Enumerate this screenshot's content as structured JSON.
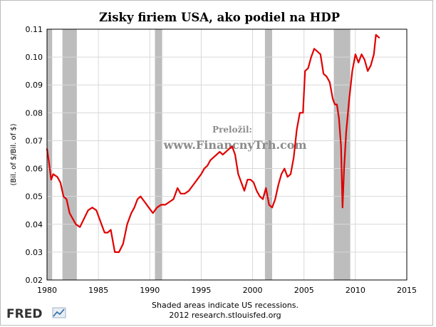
{
  "chart_data": {
    "type": "line",
    "title": "Zisky firiem USA, ako podiel na HDP",
    "ylabel": "(Bil. of $/Bil. of $)",
    "xlabel": "",
    "xlim": [
      1980,
      2015
    ],
    "ylim": [
      0.02,
      0.11
    ],
    "x_ticks": [
      "1980",
      "1985",
      "1990",
      "1995",
      "2000",
      "2005",
      "2010",
      "2015"
    ],
    "y_ticks": [
      "0.02",
      "0.03",
      "0.04",
      "0.05",
      "0.06",
      "0.07",
      "0.08",
      "0.09",
      "0.10",
      "0.11"
    ],
    "grid": true,
    "line_color": "#e00000",
    "recession_color": "#bdbdbd",
    "recessions": [
      [
        1980.0,
        1980.5
      ],
      [
        1981.5,
        1982.9
      ],
      [
        1990.5,
        1991.2
      ],
      [
        2001.2,
        2001.9
      ],
      [
        2007.9,
        2009.5
      ]
    ],
    "x": [
      1980.0,
      1980.2,
      1980.4,
      1980.6,
      1981.0,
      1981.3,
      1981.6,
      1981.9,
      1982.2,
      1982.5,
      1982.8,
      1983.2,
      1983.6,
      1984.0,
      1984.4,
      1984.8,
      1985.2,
      1985.6,
      1985.9,
      1986.2,
      1986.6,
      1987.0,
      1987.4,
      1987.8,
      1988.2,
      1988.5,
      1988.8,
      1989.1,
      1989.5,
      1989.9,
      1990.3,
      1990.7,
      1991.1,
      1991.5,
      1991.9,
      1992.3,
      1992.7,
      1993.0,
      1993.4,
      1993.8,
      1994.2,
      1994.6,
      1995.0,
      1995.3,
      1995.6,
      1995.9,
      1996.2,
      1996.5,
      1996.8,
      1997.1,
      1997.4,
      1997.7,
      1998.0,
      1998.3,
      1998.6,
      1998.9,
      1999.2,
      1999.5,
      1999.8,
      2000.1,
      2000.4,
      2000.7,
      2001.0,
      2001.3,
      2001.6,
      2001.9,
      2002.2,
      2002.5,
      2002.8,
      2003.1,
      2003.4,
      2003.7,
      2004.0,
      2004.3,
      2004.6,
      2004.9,
      2005.1,
      2005.4,
      2005.7,
      2006.0,
      2006.3,
      2006.6,
      2006.9,
      2007.2,
      2007.5,
      2007.8,
      2008.0,
      2008.2,
      2008.4,
      2008.6,
      2008.75,
      2008.9,
      2009.1,
      2009.4,
      2009.7,
      2010.0,
      2010.3,
      2010.6,
      2010.9,
      2011.2,
      2011.5,
      2011.8,
      2012.0,
      2012.3
    ],
    "values": [
      0.067,
      0.062,
      0.056,
      0.058,
      0.057,
      0.055,
      0.05,
      0.049,
      0.044,
      0.042,
      0.04,
      0.039,
      0.042,
      0.045,
      0.046,
      0.045,
      0.041,
      0.037,
      0.037,
      0.038,
      0.03,
      0.03,
      0.033,
      0.04,
      0.044,
      0.046,
      0.049,
      0.05,
      0.048,
      0.046,
      0.044,
      0.046,
      0.047,
      0.047,
      0.048,
      0.049,
      0.053,
      0.051,
      0.051,
      0.052,
      0.054,
      0.056,
      0.058,
      0.06,
      0.061,
      0.063,
      0.064,
      0.065,
      0.066,
      0.065,
      0.066,
      0.067,
      0.068,
      0.065,
      0.058,
      0.055,
      0.052,
      0.056,
      0.056,
      0.055,
      0.052,
      0.05,
      0.049,
      0.053,
      0.047,
      0.046,
      0.049,
      0.054,
      0.058,
      0.06,
      0.057,
      0.058,
      0.064,
      0.074,
      0.08,
      0.08,
      0.095,
      0.096,
      0.1,
      0.103,
      0.102,
      0.101,
      0.094,
      0.093,
      0.091,
      0.085,
      0.083,
      0.083,
      0.078,
      0.068,
      0.046,
      0.06,
      0.073,
      0.085,
      0.095,
      0.101,
      0.098,
      0.101,
      0.099,
      0.095,
      0.097,
      0.101,
      0.108,
      0.107
    ]
  },
  "watermark": {
    "line1": "Preložil:",
    "line2": "www.FinancnyTrh.com"
  },
  "footer": {
    "logo": "FRED",
    "logo_icon": "fred-chart-icon",
    "note1": "Shaded areas indicate US recessions.",
    "note2": "2012 research.stlouisfed.org"
  }
}
